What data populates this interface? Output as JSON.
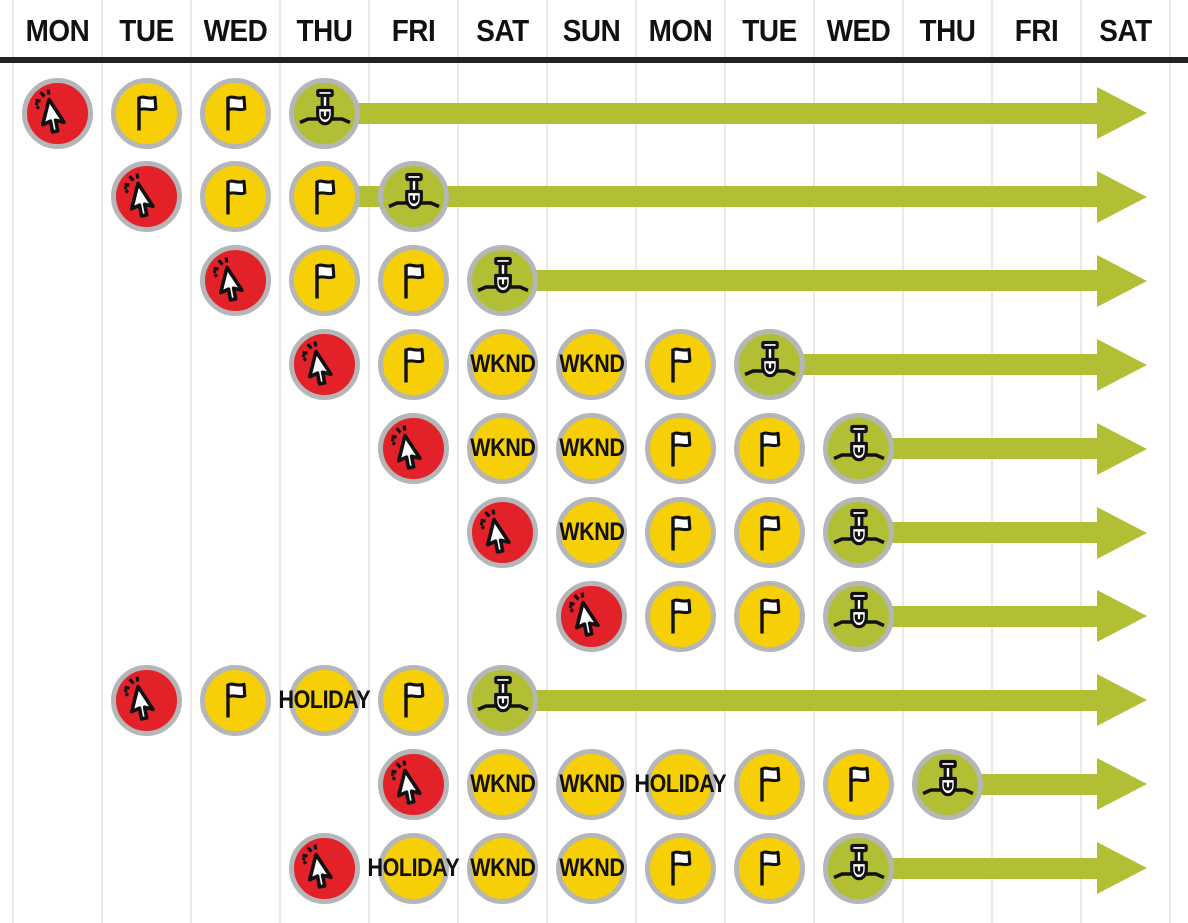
{
  "header": {
    "days": [
      "MON",
      "TUE",
      "WED",
      "THU",
      "FRI",
      "SAT",
      "SUN",
      "MON",
      "TUE",
      "WED",
      "THU",
      "FRI",
      "SAT"
    ]
  },
  "labels": {
    "weekend": "WKND",
    "holiday": "HOLIDAY"
  },
  "colors": {
    "click_red": "#e22128",
    "flag_yellow": "#f6cf06",
    "dig_green": "#b2bf35",
    "ring_gray": "#b5b6b8",
    "grid_line": "#e9e9ea",
    "header_text": "#111111",
    "header_rule": "#222222",
    "background": "#ffffff"
  },
  "rows": [
    {
      "cells": [
        {
          "col": 1,
          "type": "click"
        },
        {
          "col": 2,
          "type": "flag"
        },
        {
          "col": 3,
          "type": "flag"
        },
        {
          "col": 4,
          "type": "dig"
        }
      ],
      "arrow": {
        "from_col": 4,
        "starts_behind_previous_circle": false
      }
    },
    {
      "cells": [
        {
          "col": 2,
          "type": "click"
        },
        {
          "col": 3,
          "type": "flag"
        },
        {
          "col": 4,
          "type": "flag"
        },
        {
          "col": 5,
          "type": "dig"
        }
      ],
      "arrow": {
        "from_col": 5,
        "starts_behind_previous_circle": true
      }
    },
    {
      "cells": [
        {
          "col": 3,
          "type": "click"
        },
        {
          "col": 4,
          "type": "flag"
        },
        {
          "col": 5,
          "type": "flag"
        },
        {
          "col": 6,
          "type": "dig"
        }
      ],
      "arrow": {
        "from_col": 6,
        "starts_behind_previous_circle": false
      }
    },
    {
      "cells": [
        {
          "col": 4,
          "type": "click"
        },
        {
          "col": 5,
          "type": "flag"
        },
        {
          "col": 6,
          "type": "wknd"
        },
        {
          "col": 7,
          "type": "wknd"
        },
        {
          "col": 8,
          "type": "flag"
        },
        {
          "col": 9,
          "type": "dig"
        }
      ],
      "arrow": {
        "from_col": 9,
        "starts_behind_previous_circle": false
      }
    },
    {
      "cells": [
        {
          "col": 5,
          "type": "click"
        },
        {
          "col": 6,
          "type": "wknd"
        },
        {
          "col": 7,
          "type": "wknd"
        },
        {
          "col": 8,
          "type": "flag"
        },
        {
          "col": 9,
          "type": "flag"
        },
        {
          "col": 10,
          "type": "dig"
        }
      ],
      "arrow": {
        "from_col": 10,
        "starts_behind_previous_circle": false
      }
    },
    {
      "cells": [
        {
          "col": 6,
          "type": "click"
        },
        {
          "col": 7,
          "type": "wknd"
        },
        {
          "col": 8,
          "type": "flag"
        },
        {
          "col": 9,
          "type": "flag"
        },
        {
          "col": 10,
          "type": "dig"
        }
      ],
      "arrow": {
        "from_col": 10,
        "starts_behind_previous_circle": false
      }
    },
    {
      "cells": [
        {
          "col": 7,
          "type": "click"
        },
        {
          "col": 8,
          "type": "flag"
        },
        {
          "col": 9,
          "type": "flag"
        },
        {
          "col": 10,
          "type": "dig"
        }
      ],
      "arrow": {
        "from_col": 10,
        "starts_behind_previous_circle": false
      }
    },
    {
      "cells": [
        {
          "col": 2,
          "type": "click"
        },
        {
          "col": 3,
          "type": "flag"
        },
        {
          "col": 4,
          "type": "holiday"
        },
        {
          "col": 5,
          "type": "flag"
        },
        {
          "col": 6,
          "type": "dig"
        }
      ],
      "arrow": {
        "from_col": 6,
        "starts_behind_previous_circle": false
      }
    },
    {
      "cells": [
        {
          "col": 5,
          "type": "click"
        },
        {
          "col": 6,
          "type": "wknd"
        },
        {
          "col": 7,
          "type": "wknd"
        },
        {
          "col": 8,
          "type": "holiday"
        },
        {
          "col": 9,
          "type": "flag"
        },
        {
          "col": 10,
          "type": "flag"
        },
        {
          "col": 11,
          "type": "dig"
        }
      ],
      "arrow": {
        "from_col": 11,
        "starts_behind_previous_circle": false
      }
    },
    {
      "cells": [
        {
          "col": 4,
          "type": "click"
        },
        {
          "col": 5,
          "type": "holiday"
        },
        {
          "col": 6,
          "type": "wknd"
        },
        {
          "col": 7,
          "type": "wknd"
        },
        {
          "col": 8,
          "type": "flag"
        },
        {
          "col": 9,
          "type": "flag"
        },
        {
          "col": 10,
          "type": "dig"
        }
      ],
      "arrow": {
        "from_col": 10,
        "starts_behind_previous_circle": false
      }
    }
  ]
}
